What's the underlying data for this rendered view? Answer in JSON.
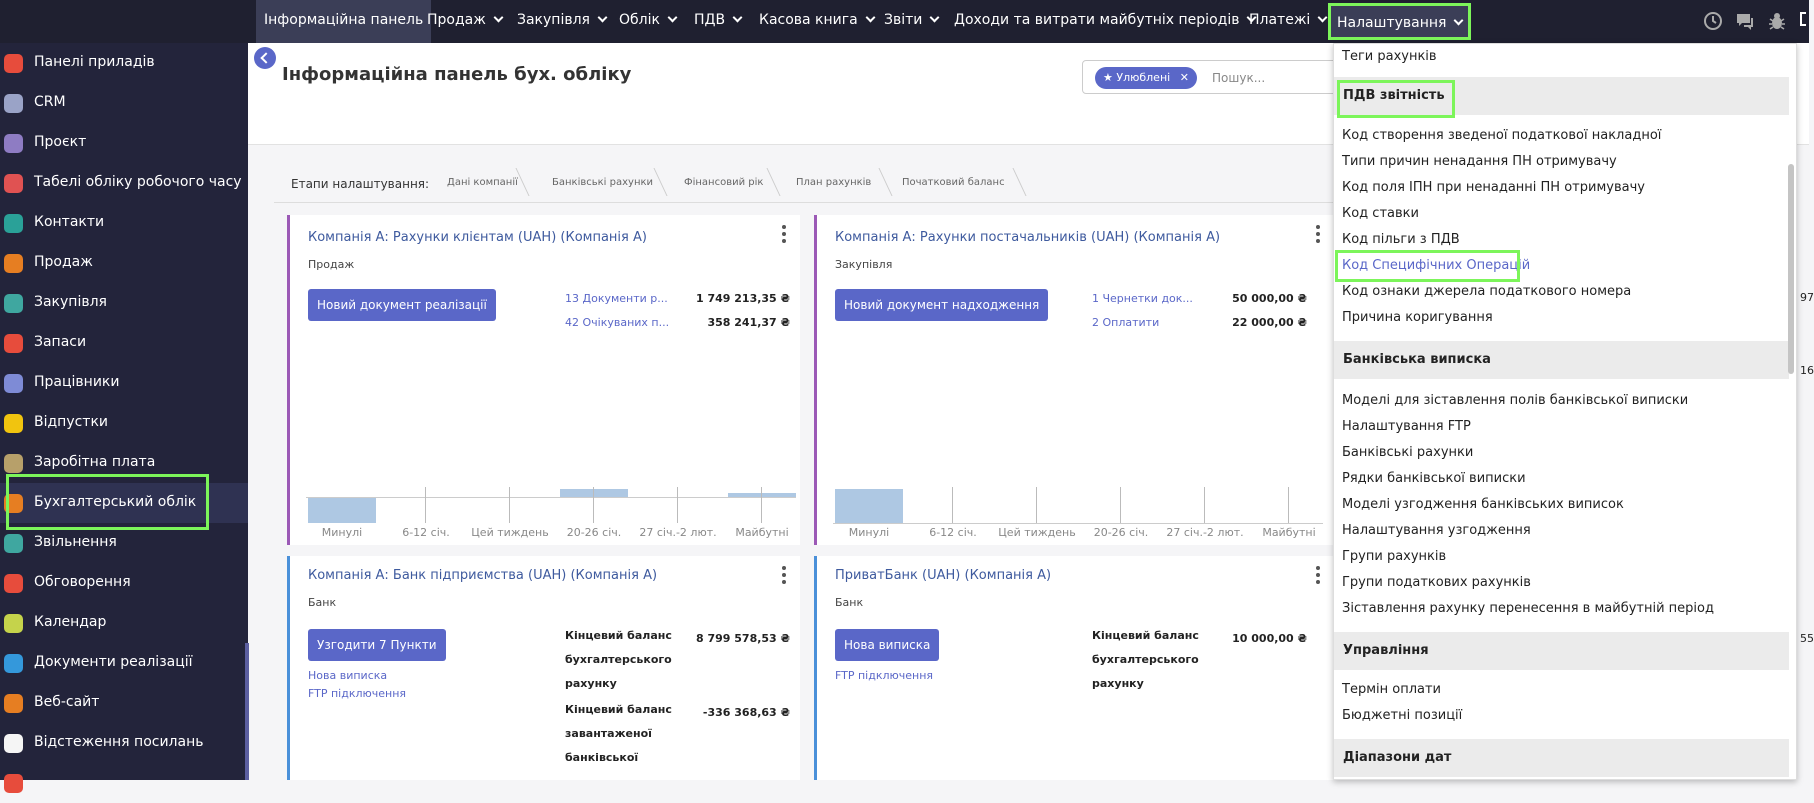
{
  "topnav": {
    "items": [
      {
        "label": "Інформаційна панель"
      },
      {
        "label": "Продаж"
      },
      {
        "label": "Закупівля"
      },
      {
        "label": "Облік"
      },
      {
        "label": "ПДВ"
      },
      {
        "label": "Касова книга"
      },
      {
        "label": "Звіти"
      },
      {
        "label": "Доходи та витрати майбутніх періодів"
      },
      {
        "label": "Платежі"
      },
      {
        "label": "Налаштування"
      }
    ],
    "icons": [
      "clock-icon",
      "chat-icon",
      "bug-icon"
    ]
  },
  "sidebar": {
    "items": [
      {
        "label": "Панелі приладів",
        "icon": "dashboard-icon",
        "color": "#e74c3c"
      },
      {
        "label": "CRM",
        "icon": "handshake-icon",
        "color": "#9aa3c7"
      },
      {
        "label": "Проєкт",
        "icon": "puzzle-icon",
        "color": "#8e7cc3"
      },
      {
        "label": "Табелі обліку робочого часу",
        "icon": "timer-icon",
        "color": "#e05252"
      },
      {
        "label": "Контакти",
        "icon": "contacts-icon",
        "color": "#2aa198"
      },
      {
        "label": "Продаж",
        "icon": "chart-line-icon",
        "color": "#e67e22"
      },
      {
        "label": "Закупівля",
        "icon": "purchase-icon",
        "color": "#3fa7a0"
      },
      {
        "label": "Запаси",
        "icon": "inventory-icon",
        "color": "#e74c3c"
      },
      {
        "label": "Працівники",
        "icon": "people-icon",
        "color": "#7e8bd6"
      },
      {
        "label": "Відпустки",
        "icon": "sun-icon",
        "color": "#f1c40f"
      },
      {
        "label": "Заробітна плата",
        "icon": "payroll-icon",
        "color": "#b7a06a"
      },
      {
        "label": "Бухгалтерський облік",
        "icon": "accounting-icon",
        "color": "#e67e22"
      },
      {
        "label": "Звільнення",
        "icon": "exit-icon",
        "color": "#3fa7a0"
      },
      {
        "label": "Обговорення",
        "icon": "discuss-icon",
        "color": "#e74c3c"
      },
      {
        "label": "Календар",
        "icon": "calendar-icon",
        "color": "#c5d34b"
      },
      {
        "label": "Документи реалізації",
        "icon": "invoice-icon",
        "color": "#3498db"
      },
      {
        "label": "Веб-сайт",
        "icon": "globe-icon",
        "color": "#e67e22"
      },
      {
        "label": "Відстеження посилань",
        "icon": "link-icon",
        "color": "#f5f5f5"
      },
      {
        "label": "",
        "icon": "app-icon",
        "color": "#e74c3c"
      }
    ],
    "active_index": 11
  },
  "header": {
    "title": "Інформаційна панель бух. обліку",
    "search": {
      "chip_label": "Улюблені",
      "placeholder": "Пошук..."
    }
  },
  "steps": {
    "label": "Етапи налаштування:",
    "items": [
      "Дані компанії",
      "Банківські рахунки",
      "Фінансовий рік",
      "План рахунків",
      "Початковий баланс"
    ]
  },
  "cards": {
    "sales": {
      "title": "Компанія А: Рахунки клієнтам (UAH) (Компанія А)",
      "subtitle": "Продаж",
      "button": "Новий документ реалізації",
      "links": [
        "13 Документи р...",
        "42 Очікуваних п..."
      ],
      "amounts": [
        "1 749 213,35 ₴",
        "358 241,37 ₴"
      ],
      "chart_x": [
        "Минулі",
        "6-12 січ.",
        "Цей тиждень",
        "20-26 січ.",
        "27 січ.-2 лют.",
        "Майбутні"
      ]
    },
    "purchase": {
      "title": "Компанія А: Рахунки постачальників (UAH) (Компанія А)",
      "subtitle": "Закупівля",
      "button": "Новий документ надходження",
      "links": [
        "1 Чернетки док...",
        "2 Оплатити"
      ],
      "amounts": [
        "50 000,00 ₴",
        "22 000,00 ₴"
      ],
      "chart_x": [
        "Минулі",
        "6-12 січ.",
        "Цей тиждень",
        "20-26 січ.",
        "27 січ.-2 лют.",
        "Майбутні"
      ]
    },
    "bank": {
      "title": "Компанія А: Банк підприємства (UAH) (Компанія А)",
      "subtitle": "Банк",
      "button": "Узгодити 7 Пункти",
      "links": [
        "Нова виписка",
        "FTP підключення"
      ],
      "balance_label_1": "Кінцевий баланс бухгалтерського рахунку",
      "balance_value_1": "8 799 578,53 ₴",
      "balance_label_2": "Кінцевий баланс завантаженої банківської",
      "balance_value_2": "-336 368,63 ₴"
    },
    "privat": {
      "title": "ПриватБанк (UAH) (Компанія А)",
      "subtitle": "Банк",
      "button": "Нова виписка",
      "links": [
        "FTP підключення"
      ],
      "balance_label_1": "Кінцевий баланс бухгалтерського рахунку",
      "balance_value_1": "10 000,00 ₴"
    }
  },
  "dropdown": {
    "top_item": "Теги рахунків",
    "sections": [
      {
        "title": "ПДВ звітність",
        "items": [
          "Код створення зведеної податкової накладної",
          "Типи причин ненадання ПН отримувачу",
          "Код поля ІПН при ненаданні ПН отримувачу",
          "Код ставки",
          "Код пільги з ПДВ",
          "Код Специфічних Операцій",
          "Код ознаки джерела податкового номера",
          "Причина коригування"
        ]
      },
      {
        "title": "Банківська виписка",
        "items": [
          "Моделі для зіставлення полів банківської виписки",
          "Налаштування FTP",
          "Банківські рахунки",
          "Рядки банківської виписки",
          "Моделі узгодження банківських виписок",
          "Налаштування узгодження",
          "Групи рахунків",
          "Групи податкових рахунків",
          "Зіставлення рахунку перенесення в майбутній період"
        ]
      },
      {
        "title": "Управління",
        "items": [
          "Термін оплати",
          "Бюджетні позиції"
        ]
      },
      {
        "title": "Діапазони дат",
        "items": []
      }
    ]
  },
  "right_clip": [
    "97",
    "16",
    "55"
  ]
}
